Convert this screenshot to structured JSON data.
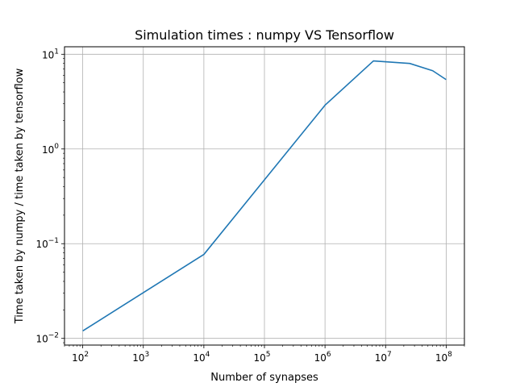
{
  "chart_data": {
    "type": "line",
    "title": "Simulation times : numpy VS Tensorflow",
    "xlabel": "Number of synapses",
    "ylabel": "Time taken by numpy / time taken by tensorflow",
    "xscale": "log",
    "yscale": "log",
    "xlim": [
      50,
      200000000
    ],
    "ylim": [
      0.0085,
      12
    ],
    "grid": true,
    "x_ticks": [
      {
        "base": "10",
        "exp": "2",
        "value": 100
      },
      {
        "base": "10",
        "exp": "3",
        "value": 1000
      },
      {
        "base": "10",
        "exp": "4",
        "value": 10000
      },
      {
        "base": "10",
        "exp": "5",
        "value": 100000
      },
      {
        "base": "10",
        "exp": "6",
        "value": 1000000
      },
      {
        "base": "10",
        "exp": "7",
        "value": 10000000
      },
      {
        "base": "10",
        "exp": "8",
        "value": 100000000
      }
    ],
    "y_ticks": [
      {
        "base": "10",
        "exp": "−2",
        "value": 0.01
      },
      {
        "base": "10",
        "exp": "−1",
        "value": 0.1
      },
      {
        "base": "10",
        "exp": "0",
        "value": 1
      },
      {
        "base": "10",
        "exp": "1",
        "value": 10
      }
    ],
    "series": [
      {
        "color": "#1f77b4",
        "x": [
          100,
          10000,
          1000000,
          6300000,
          25000000,
          60000000,
          100000000
        ],
        "y": [
          0.012,
          0.077,
          2.9,
          8.5,
          8.0,
          6.7,
          5.4
        ]
      }
    ]
  }
}
